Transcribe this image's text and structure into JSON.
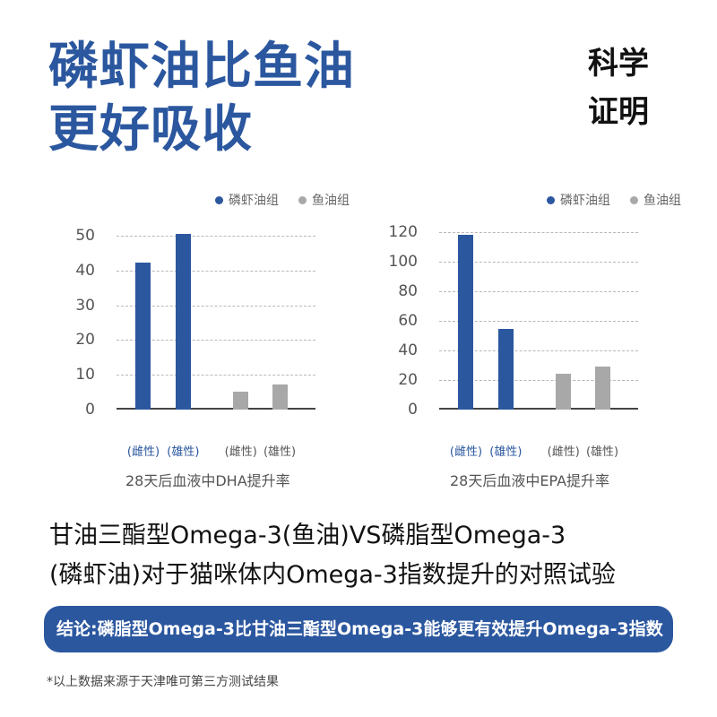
{
  "headline": {
    "line1": "磷虾油比鱼油",
    "line2": "更好吸收"
  },
  "badge": {
    "line1": "科学",
    "line2": "证明"
  },
  "colors": {
    "krill": "#2b579f",
    "fish": "#a8a8a8",
    "banner": "#2b579f"
  },
  "chart_data": [
    {
      "type": "bar",
      "title": "28天后血液中DHA提升率",
      "legend": [
        {
          "label": "磷虾油组",
          "color": "#2b579f"
        },
        {
          "label": "鱼油组",
          "color": "#a8a8a8"
        }
      ],
      "legend_position": "top-right",
      "categories": [
        "(雌性)",
        "(雄性)",
        "(雌性)",
        "(雄性)"
      ],
      "category_groups": [
        "磷虾油组",
        "磷虾油组",
        "鱼油组",
        "鱼油组"
      ],
      "values": [
        42.3,
        50.5,
        5.2,
        7.2
      ],
      "yticks": [
        "0",
        "10",
        "20",
        "30",
        "40",
        "50"
      ],
      "ylim": [
        0,
        50
      ],
      "grid": true,
      "xlabel": "",
      "ylabel": ""
    },
    {
      "type": "bar",
      "title": "28天后血液中EPA提升率",
      "legend": [
        {
          "label": "磷虾油组",
          "color": "#2b579f"
        },
        {
          "label": "鱼油组",
          "color": "#a8a8a8"
        }
      ],
      "legend_position": "top-right",
      "categories": [
        "(雌性)",
        "(雄性)",
        "(雌性)",
        "(雄性)"
      ],
      "category_groups": [
        "磷虾油组",
        "磷虾油组",
        "鱼油组",
        "鱼油组"
      ],
      "values": [
        118,
        54.5,
        24.2,
        29
      ],
      "yticks": [
        "0",
        "20",
        "40",
        "60",
        "80",
        "100",
        "120"
      ],
      "ylim": [
        0,
        120
      ],
      "grid": true,
      "xlabel": "",
      "ylabel": ""
    }
  ],
  "subtitle": {
    "line1": "甘油三酯型Omega-3(鱼油)VS磷脂型Omega-3",
    "line2": "(磷虾油)对于猫咪体内Omega-3指数提升的对照试验"
  },
  "conclusion": "结论:磷脂型Omega-3比甘油三酯型Omega-3能够更有效提升Omega-3指数",
  "footnote": "*以上数据来源于天津唯可第三方测试结果"
}
